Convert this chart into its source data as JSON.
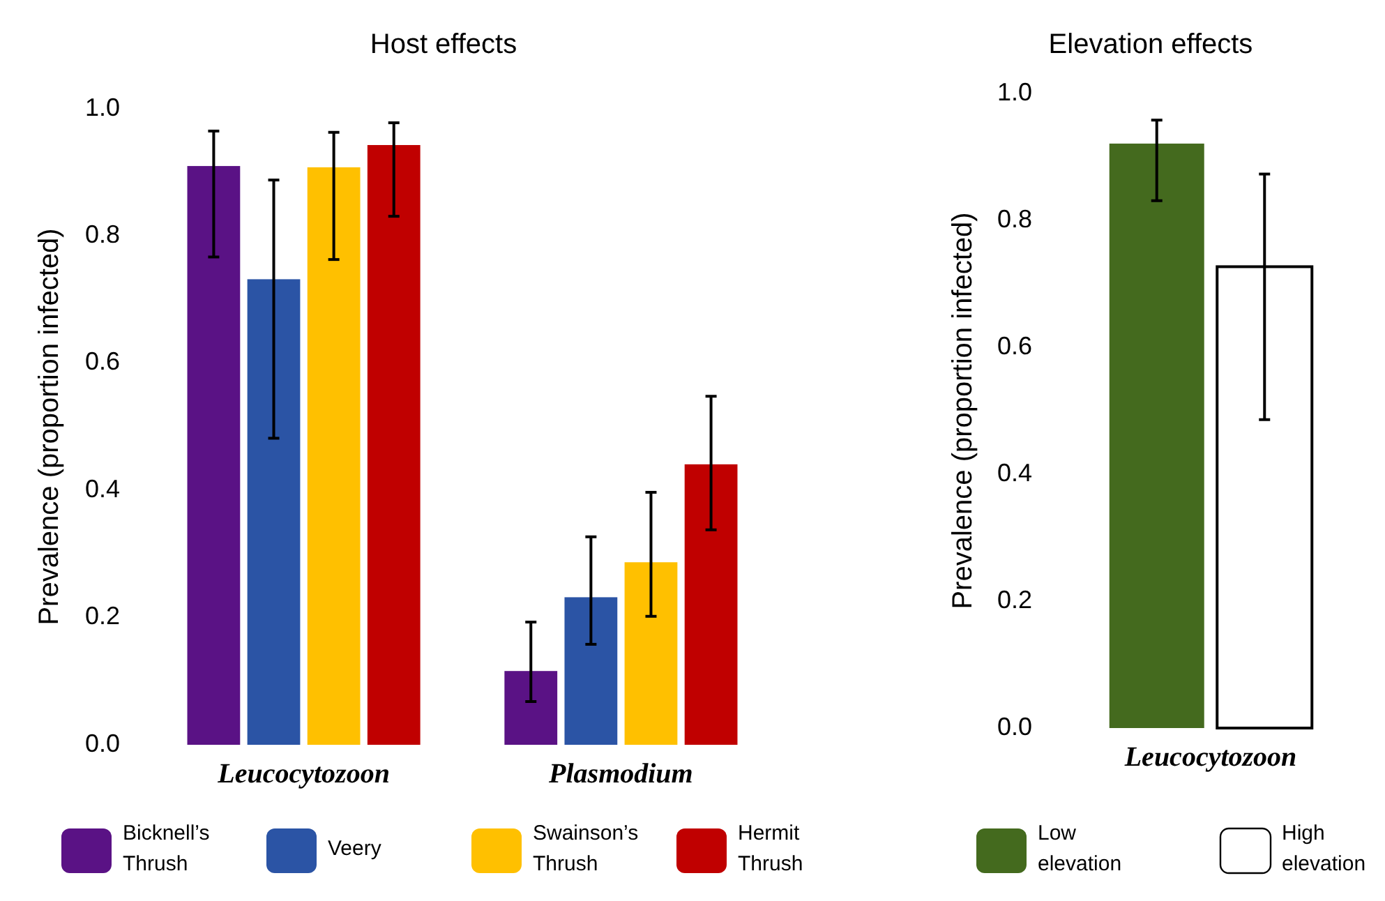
{
  "chart_data": [
    {
      "type": "bar",
      "title": "Host effects",
      "ylabel": "Prevalence (proportion infected)",
      "categories": [
        "Leucocytozoon",
        "Plasmodium"
      ],
      "ylim": [
        0,
        1
      ],
      "yticks": [
        {
          "value": 0,
          "label": "0.0"
        },
        {
          "value": 0.2,
          "label": "0.2"
        },
        {
          "value": 0.4,
          "label": "0.4"
        },
        {
          "value": 0.6,
          "label": "0.6"
        },
        {
          "value": 0.8,
          "label": "0.8"
        },
        {
          "value": 1,
          "label": "1.0"
        }
      ],
      "legend": "bottom",
      "grid": false,
      "series": [
        {
          "name": "Bicknell’s Thrush",
          "color": "#5a1285",
          "values": [
            0.91,
            0.116
          ],
          "errors": [
            [
              0.767,
              0.965
            ],
            [
              0.068,
              0.193
            ]
          ]
        },
        {
          "name": "Veery",
          "color": "#2b54a5",
          "values": [
            0.732,
            0.232
          ],
          "errors": [
            [
              0.482,
              0.888
            ],
            [
              0.158,
              0.327
            ]
          ]
        },
        {
          "name": "Swainson’s Thrush",
          "color": "#ffc000",
          "values": [
            0.908,
            0.287
          ],
          "errors": [
            [
              0.763,
              0.963
            ],
            [
              0.202,
              0.397
            ]
          ]
        },
        {
          "name": "Hermit Thrush",
          "color": "#c00000",
          "values": [
            0.943,
            0.441
          ],
          "errors": [
            [
              0.831,
              0.978
            ],
            [
              0.338,
              0.548
            ]
          ]
        }
      ]
    },
    {
      "type": "bar",
      "title": "Elevation effects",
      "ylabel": "Prevalence (proportion infected)",
      "categories": [
        "Leucocytozoon"
      ],
      "ylim": [
        0,
        1
      ],
      "yticks": [
        {
          "value": 0,
          "label": "0.0"
        },
        {
          "value": 0.2,
          "label": "0.2"
        },
        {
          "value": 0.4,
          "label": "0.4"
        },
        {
          "value": 0.6,
          "label": "0.6"
        },
        {
          "value": 0.8,
          "label": "0.8"
        },
        {
          "value": 1,
          "label": "1.0"
        }
      ],
      "legend": "bottom",
      "grid": false,
      "series": [
        {
          "name": "Low elevation",
          "color": "#446a1e",
          "values": [
            0.921
          ],
          "errors": [
            [
              0.831,
              0.958
            ]
          ]
        },
        {
          "name": "High elevation",
          "color": "#ffffff",
          "values": [
            0.727
          ],
          "errors": [
            [
              0.486,
              0.873
            ]
          ]
        }
      ]
    }
  ]
}
